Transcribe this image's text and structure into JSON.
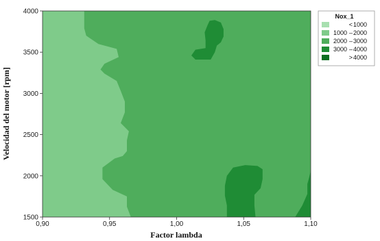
{
  "chart_data": {
    "type": "contour",
    "title": "",
    "xlabel": "Factor lambda",
    "ylabel": "Velocidad del motor [rpm]",
    "xlim": [
      0.9,
      1.1
    ],
    "ylim": [
      1500,
      4000
    ],
    "xticks": [
      0.9,
      0.95,
      1.0,
      1.05,
      1.1
    ],
    "xtick_labels": [
      "0,90",
      "0,95",
      "1,00",
      "1,05",
      "1,10"
    ],
    "yticks": [
      1500,
      2000,
      2500,
      3000,
      3500,
      4000
    ],
    "ytick_labels": [
      "1500",
      "2000",
      "2500",
      "3000",
      "3500",
      "4000"
    ],
    "legend": {
      "title": "Nox_1",
      "position": "top-right",
      "entries": [
        {
          "op": "<",
          "lo": "",
          "hi": "1000",
          "color": "#a8dfb0"
        },
        {
          "op": "",
          "lo": "1000",
          "hi": "2000",
          "color": "#7fcb8a"
        },
        {
          "op": "",
          "lo": "2000",
          "hi": "3000",
          "color": "#4fad5c"
        },
        {
          "op": "",
          "lo": "3000",
          "hi": "4000",
          "color": "#1f8c35"
        },
        {
          "op": ">",
          "lo": "",
          "hi": "4000",
          "color": "#0b6e21"
        }
      ]
    },
    "regions": [
      {
        "name": "region-1000-2000",
        "level": "1000 - 2000",
        "color": "#7fcb8a",
        "points": [
          [
            0.9,
            1500
          ],
          [
            0.9659,
            1500
          ],
          [
            0.9629,
            1625
          ],
          [
            0.9629,
            1750
          ],
          [
            0.9523,
            1830
          ],
          [
            0.9447,
            1960
          ],
          [
            0.9447,
            2100
          ],
          [
            0.9538,
            2210
          ],
          [
            0.9598,
            2240
          ],
          [
            0.9629,
            2300
          ],
          [
            0.9629,
            2430
          ],
          [
            0.9644,
            2540
          ],
          [
            0.9583,
            2640
          ],
          [
            0.9614,
            2770
          ],
          [
            0.9614,
            2900
          ],
          [
            0.9583,
            3030
          ],
          [
            0.9553,
            3150
          ],
          [
            0.9462,
            3240
          ],
          [
            0.9432,
            3290
          ],
          [
            0.9462,
            3360
          ],
          [
            0.9568,
            3440
          ],
          [
            0.9553,
            3540
          ],
          [
            0.9417,
            3600
          ],
          [
            0.9326,
            3700
          ],
          [
            0.9311,
            3790
          ],
          [
            0.9311,
            3880
          ],
          [
            0.9311,
            4000
          ],
          [
            0.9,
            4000
          ]
        ]
      },
      {
        "name": "region-3000-4000-top",
        "level": "3000 - 4000",
        "color": "#1f8c35",
        "points": [
          [
            1.0285,
            3890
          ],
          [
            1.033,
            3860
          ],
          [
            1.035,
            3780
          ],
          [
            1.035,
            3690
          ],
          [
            1.033,
            3620
          ],
          [
            1.03,
            3580
          ],
          [
            1.0285,
            3500
          ],
          [
            1.0254,
            3410
          ],
          [
            1.014,
            3410
          ],
          [
            1.011,
            3460
          ],
          [
            1.014,
            3530
          ],
          [
            1.0216,
            3550
          ],
          [
            1.0216,
            3640
          ],
          [
            1.0209,
            3740
          ],
          [
            1.0231,
            3830
          ],
          [
            1.0246,
            3880
          ]
        ]
      },
      {
        "name": "region-3000-4000-bottom-center",
        "level": "3000 - 4000",
        "color": "#1f8c35",
        "points": [
          [
            1.0375,
            1500
          ],
          [
            1.0375,
            1640
          ],
          [
            1.036,
            1760
          ],
          [
            1.036,
            1880
          ],
          [
            1.0375,
            2000
          ],
          [
            1.0421,
            2100
          ],
          [
            1.0512,
            2130
          ],
          [
            1.0603,
            2120
          ],
          [
            1.0641,
            2080
          ],
          [
            1.0641,
            1960
          ],
          [
            1.0626,
            1850
          ],
          [
            1.058,
            1770
          ],
          [
            1.058,
            1640
          ],
          [
            1.0588,
            1500
          ]
        ]
      },
      {
        "name": "region-3000-4000-bottom-right",
        "level": "3000 - 4000",
        "color": "#1f8c35",
        "points": [
          [
            1.0884,
            1500
          ],
          [
            1.0937,
            1640
          ],
          [
            1.0975,
            1780
          ],
          [
            1.0975,
            1900
          ],
          [
            1.099,
            1990
          ],
          [
            1.1,
            2060
          ],
          [
            1.1,
            1500
          ]
        ]
      }
    ]
  }
}
